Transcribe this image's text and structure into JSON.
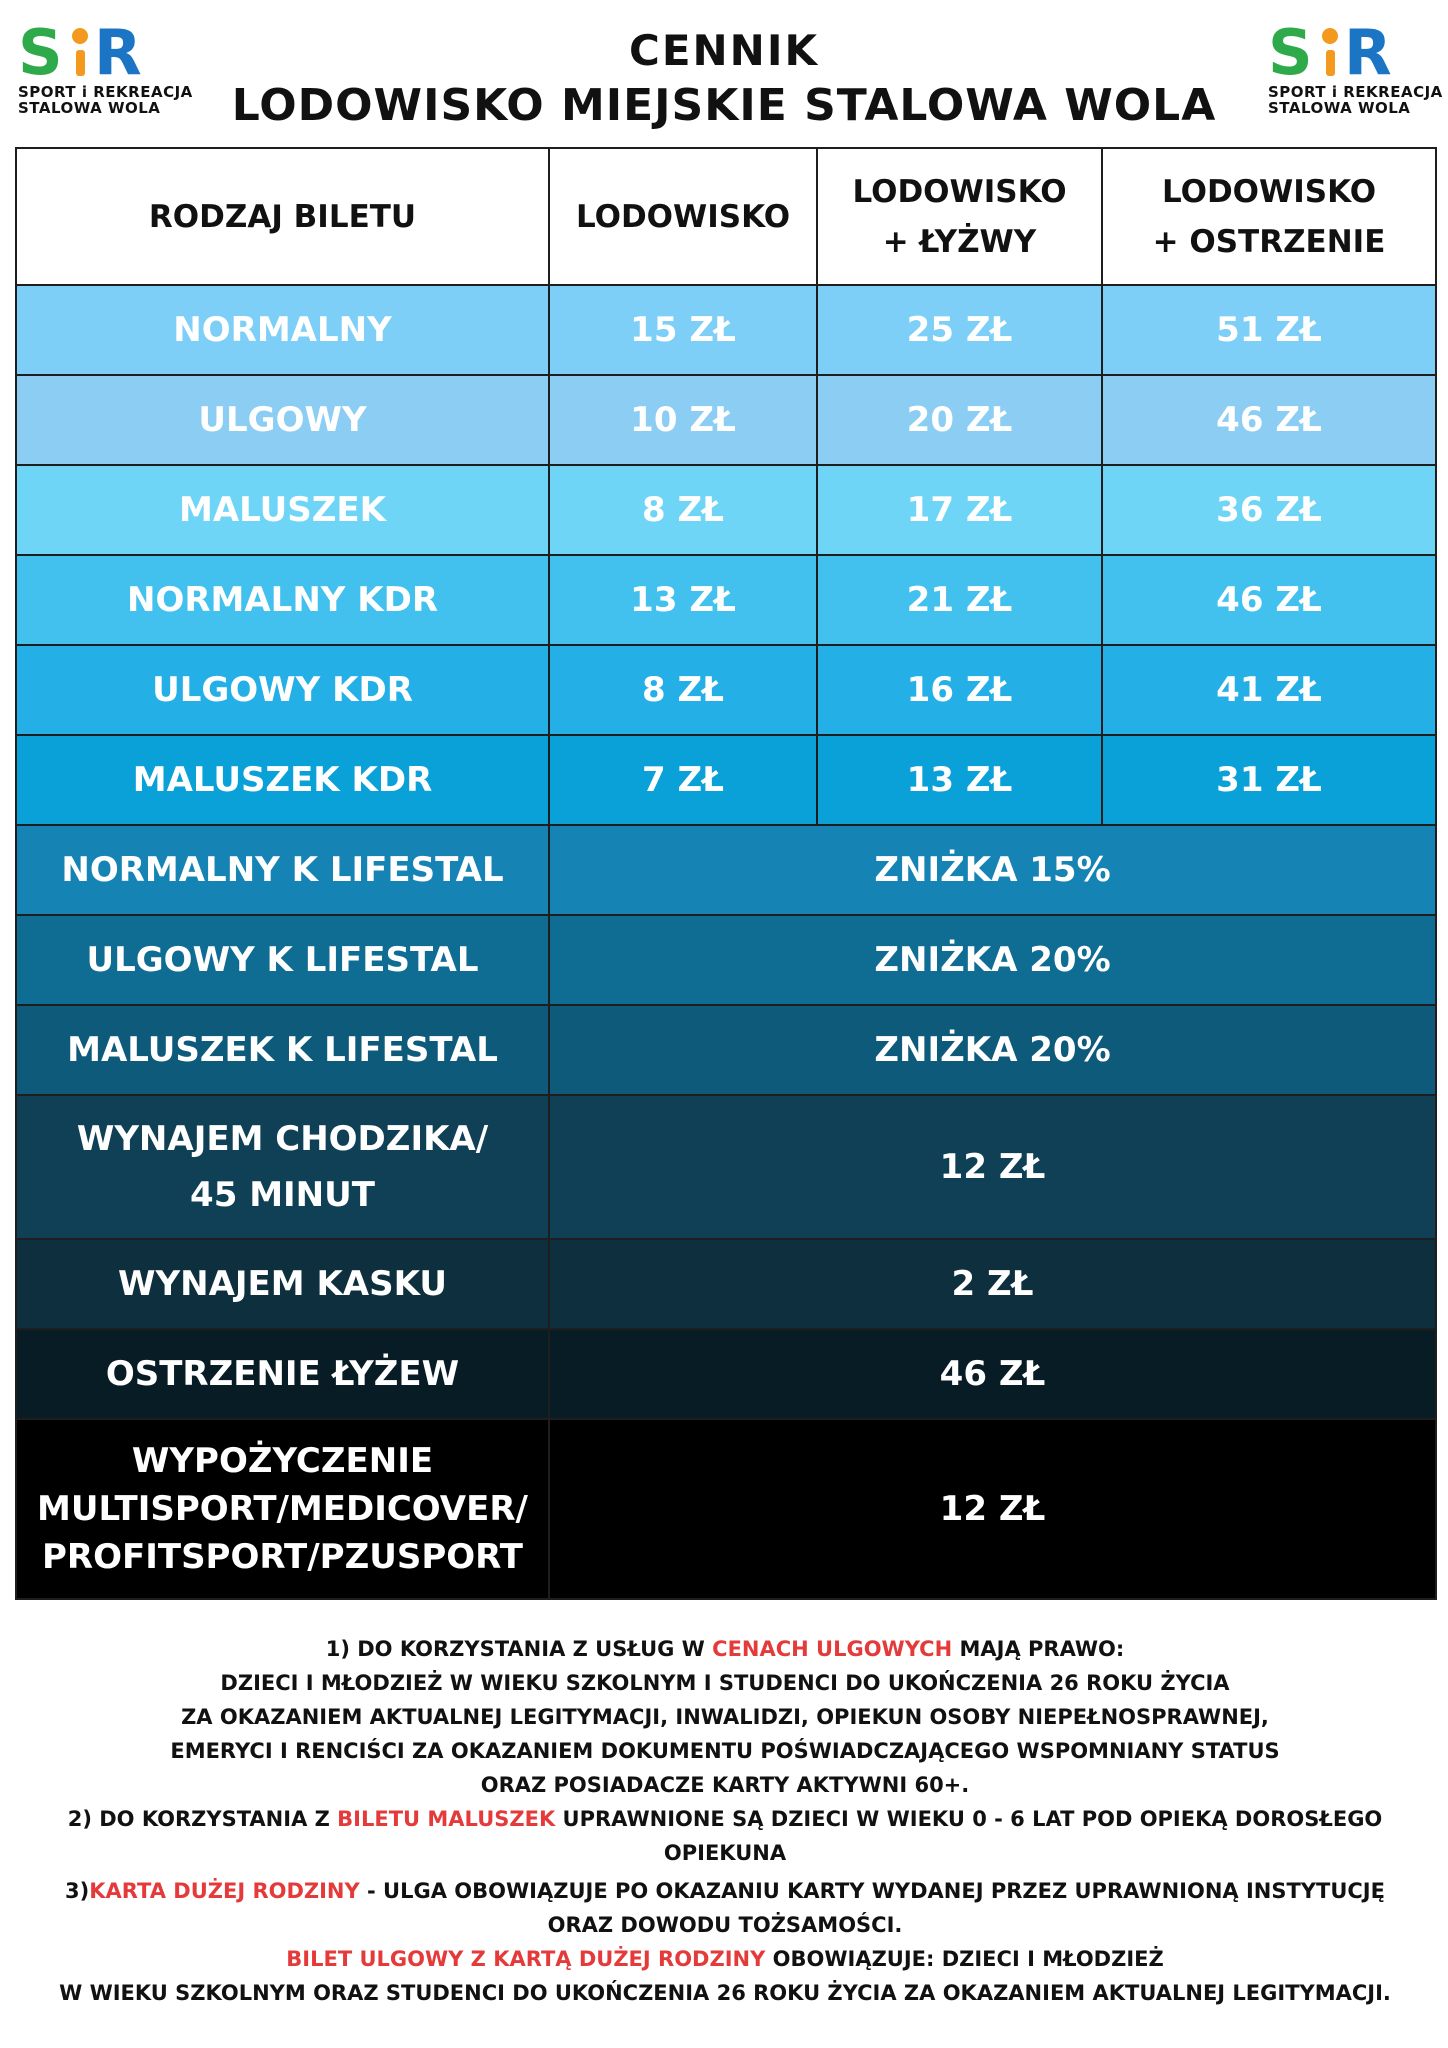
{
  "logo": {
    "mark_left": "S",
    "mark_right": "R",
    "line1": "SPORT i REKREACJA",
    "line2": "STALOWA WOLA",
    "colors": {
      "green": "#2eaa4a",
      "blue": "#1b75c4",
      "orange": "#f39a1e"
    }
  },
  "header": {
    "title": "CENNIK",
    "subtitle": "LODOWISKO MIEJSKIE STALOWA WOLA"
  },
  "table": {
    "headers": {
      "type": "RODZAJ BILETU",
      "rink": "LODOWISKO",
      "rink_skates_1": "LODOWISKO",
      "rink_skates_2": "+  ŁYŻWY",
      "rink_sharpen_1": "LODOWISKO",
      "rink_sharpen_2": "+ OSTRZENIE"
    },
    "rows": [
      {
        "label": "NORMALNY",
        "rink": "15 ZŁ",
        "skates": "25 ZŁ",
        "sharpen": "51 ZŁ",
        "color": "#7dcff7"
      },
      {
        "label": "ULGOWY",
        "rink": "10 ZŁ",
        "skates": "20 ZŁ",
        "sharpen": "46 ZŁ",
        "color": "#8ccdf3"
      },
      {
        "label": "MALUSZEK",
        "rink": "8 ZŁ",
        "skates": "17 ZŁ",
        "sharpen": "36 ZŁ",
        "color": "#6fd5f7"
      },
      {
        "label": "NORMALNY KDR",
        "rink": "13 ZŁ",
        "skates": "21 ZŁ",
        "sharpen": "46 ZŁ",
        "color": "#42c0ee"
      },
      {
        "label": "ULGOWY KDR",
        "rink": "8 ZŁ",
        "skates": "16 ZŁ",
        "sharpen": "41 ZŁ",
        "color": "#24b0e6"
      },
      {
        "label": "MALUSZEK KDR",
        "rink": "7 ZŁ",
        "skates": "13 ZŁ",
        "sharpen": "31 ZŁ",
        "color": "#0aa0d8"
      }
    ],
    "merged_rows": [
      {
        "label": "NORMALNY K LIFESTAL",
        "value": "ZNIŻKA 15%",
        "color": "#1584b5"
      },
      {
        "label": "ULGOWY K LIFESTAL",
        "value": "ZNIŻKA 20%",
        "color": "#0f6c93"
      },
      {
        "label": "MALUSZEK K LIFESTAL",
        "value": "ZNIŻKA 20%",
        "color": "#0d5a7a"
      },
      {
        "label_1": "WYNAJEM CHODZIKA/",
        "label_2": "45 MINUT",
        "value": "12 ZŁ",
        "color": "#0f4056"
      },
      {
        "label": "WYNAJEM KASKU",
        "value": "2 ZŁ",
        "color": "#0e2f3e"
      },
      {
        "label": "OSTRZENIE ŁYŻEW",
        "value": "46 ZŁ",
        "color": "#081c25"
      },
      {
        "label_1": "WYPOŻYCZENIE",
        "label_2": "MULTISPORT/MEDICOVER/",
        "label_3": "PROFITSPORT/PZUSPORT",
        "value": "12 ZŁ",
        "color": "#000000"
      }
    ]
  },
  "notes": {
    "n1_pre": "1) DO KORZYSTANIA Z USŁUG W ",
    "n1_red": "CENACH ULGOWYCH",
    "n1_post": " MAJĄ PRAWO:",
    "n1_l2": "DZIECI I MŁODZIEŻ W WIEKU SZKOLNYM I STUDENCI DO UKOŃCZENIA 26 ROKU ŻYCIA",
    "n1_l3": "ZA OKAZANIEM AKTUALNEJ LEGITYMACJI, INWALIDZI, OPIEKUN OSOBY NIEPEŁNOSPRAWNEJ,",
    "n1_l4": "EMERYCI I RENCIŚCI ZA OKAZANIEM DOKUMENTU POŚWIADCZAJĄCEGO WSPOMNIANY STATUS",
    "n1_l5": "ORAZ POSIADACZE KARTY AKTYWNI 60+.",
    "n2_pre": "2) DO KORZYSTANIA Z ",
    "n2_red": "BILETU MALUSZEK",
    "n2_post": " UPRAWNIONE SĄ DZIECI W WIEKU 0 - 6 LAT POD OPIEKĄ DOROSŁEGO",
    "n2_l2": "OPIEKUNA",
    "n3_pre": "3)",
    "n3_red": "KARTA DUŻEJ RODZINY",
    "n3_post": " - ULGA OBOWIĄZUJE PO OKAZANIU KARTY WYDANEJ PRZEZ UPRAWNIONĄ INSTYTUCJĘ",
    "n3_l2": "ORAZ DOWODU TOŻSAMOŚCI.",
    "n3_red2": "BILET ULGOWY Z KARTĄ DUŻEJ RODZINY",
    "n3_post2": " OBOWIĄZUJE: DZIECI I MŁODZIEŻ",
    "n3_l4": "W WIEKU SZKOLNYM ORAZ STUDENCI DO UKOŃCZENIA 26 ROKU ŻYCIA ZA OKAZANIEM AKTUALNEJ LEGITYMACJI."
  }
}
